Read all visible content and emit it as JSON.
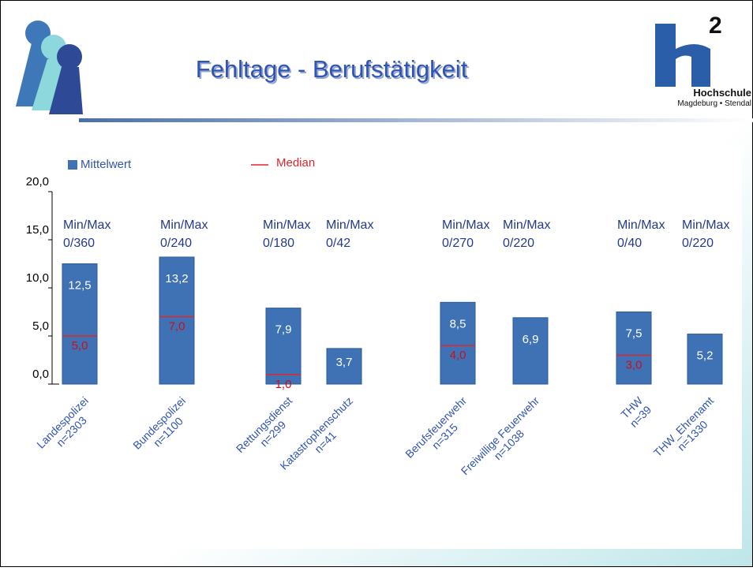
{
  "chart_data": {
    "type": "bar",
    "title": "Fehltage - Berufstätigkeit",
    "logo_text": "Hochschule",
    "logo_subtext": "Magdeburg • Stendal",
    "logo_superscript": "2",
    "legend": [
      "Mittelwert",
      "Median"
    ],
    "categories": [
      "Landespolizei",
      "Bundespolizei",
      "Rettungsdienst",
      "Katastrophenschutz",
      "Berufsfeuerwehr",
      "Freiwillige Feuerwehr",
      "THW",
      "THW_Ehrenamt"
    ],
    "sample_sizes": [
      "n=2303",
      "n=1100",
      "n=299",
      "n=41",
      "n=315",
      "n=1038",
      "n=39",
      "n=1330"
    ],
    "series": [
      {
        "name": "Mittelwert",
        "color": "#3e72b5",
        "values": [
          12.5,
          13.2,
          7.9,
          3.7,
          8.5,
          6.9,
          7.5,
          5.2
        ],
        "value_labels": [
          "12,5",
          "13,2",
          "7,9",
          "3,7",
          "8,5",
          "6,9",
          "7,5",
          "5,2"
        ]
      },
      {
        "name": "Median",
        "color": "#e0262a",
        "values": [
          5.0,
          7.0,
          1.0,
          null,
          4.0,
          null,
          3.0,
          null
        ],
        "value_labels": [
          "5,0",
          "7,0",
          "1,0",
          null,
          "4,0",
          null,
          "3,0",
          null
        ]
      }
    ],
    "minmax_title": "Min/Max",
    "minmax_labels": [
      "0/360",
      "0/240",
      "0/180",
      "0/42",
      "0/270",
      "0/220",
      "0/40",
      "0/220"
    ],
    "ylim": [
      0,
      20
    ],
    "yticks": [
      {
        "value": 0,
        "label": "0,0"
      },
      {
        "value": 5,
        "label": "5,0"
      },
      {
        "value": 10,
        "label": "10,0"
      },
      {
        "value": 15,
        "label": "15,0"
      },
      {
        "value": 20,
        "label": "20,0"
      }
    ]
  }
}
